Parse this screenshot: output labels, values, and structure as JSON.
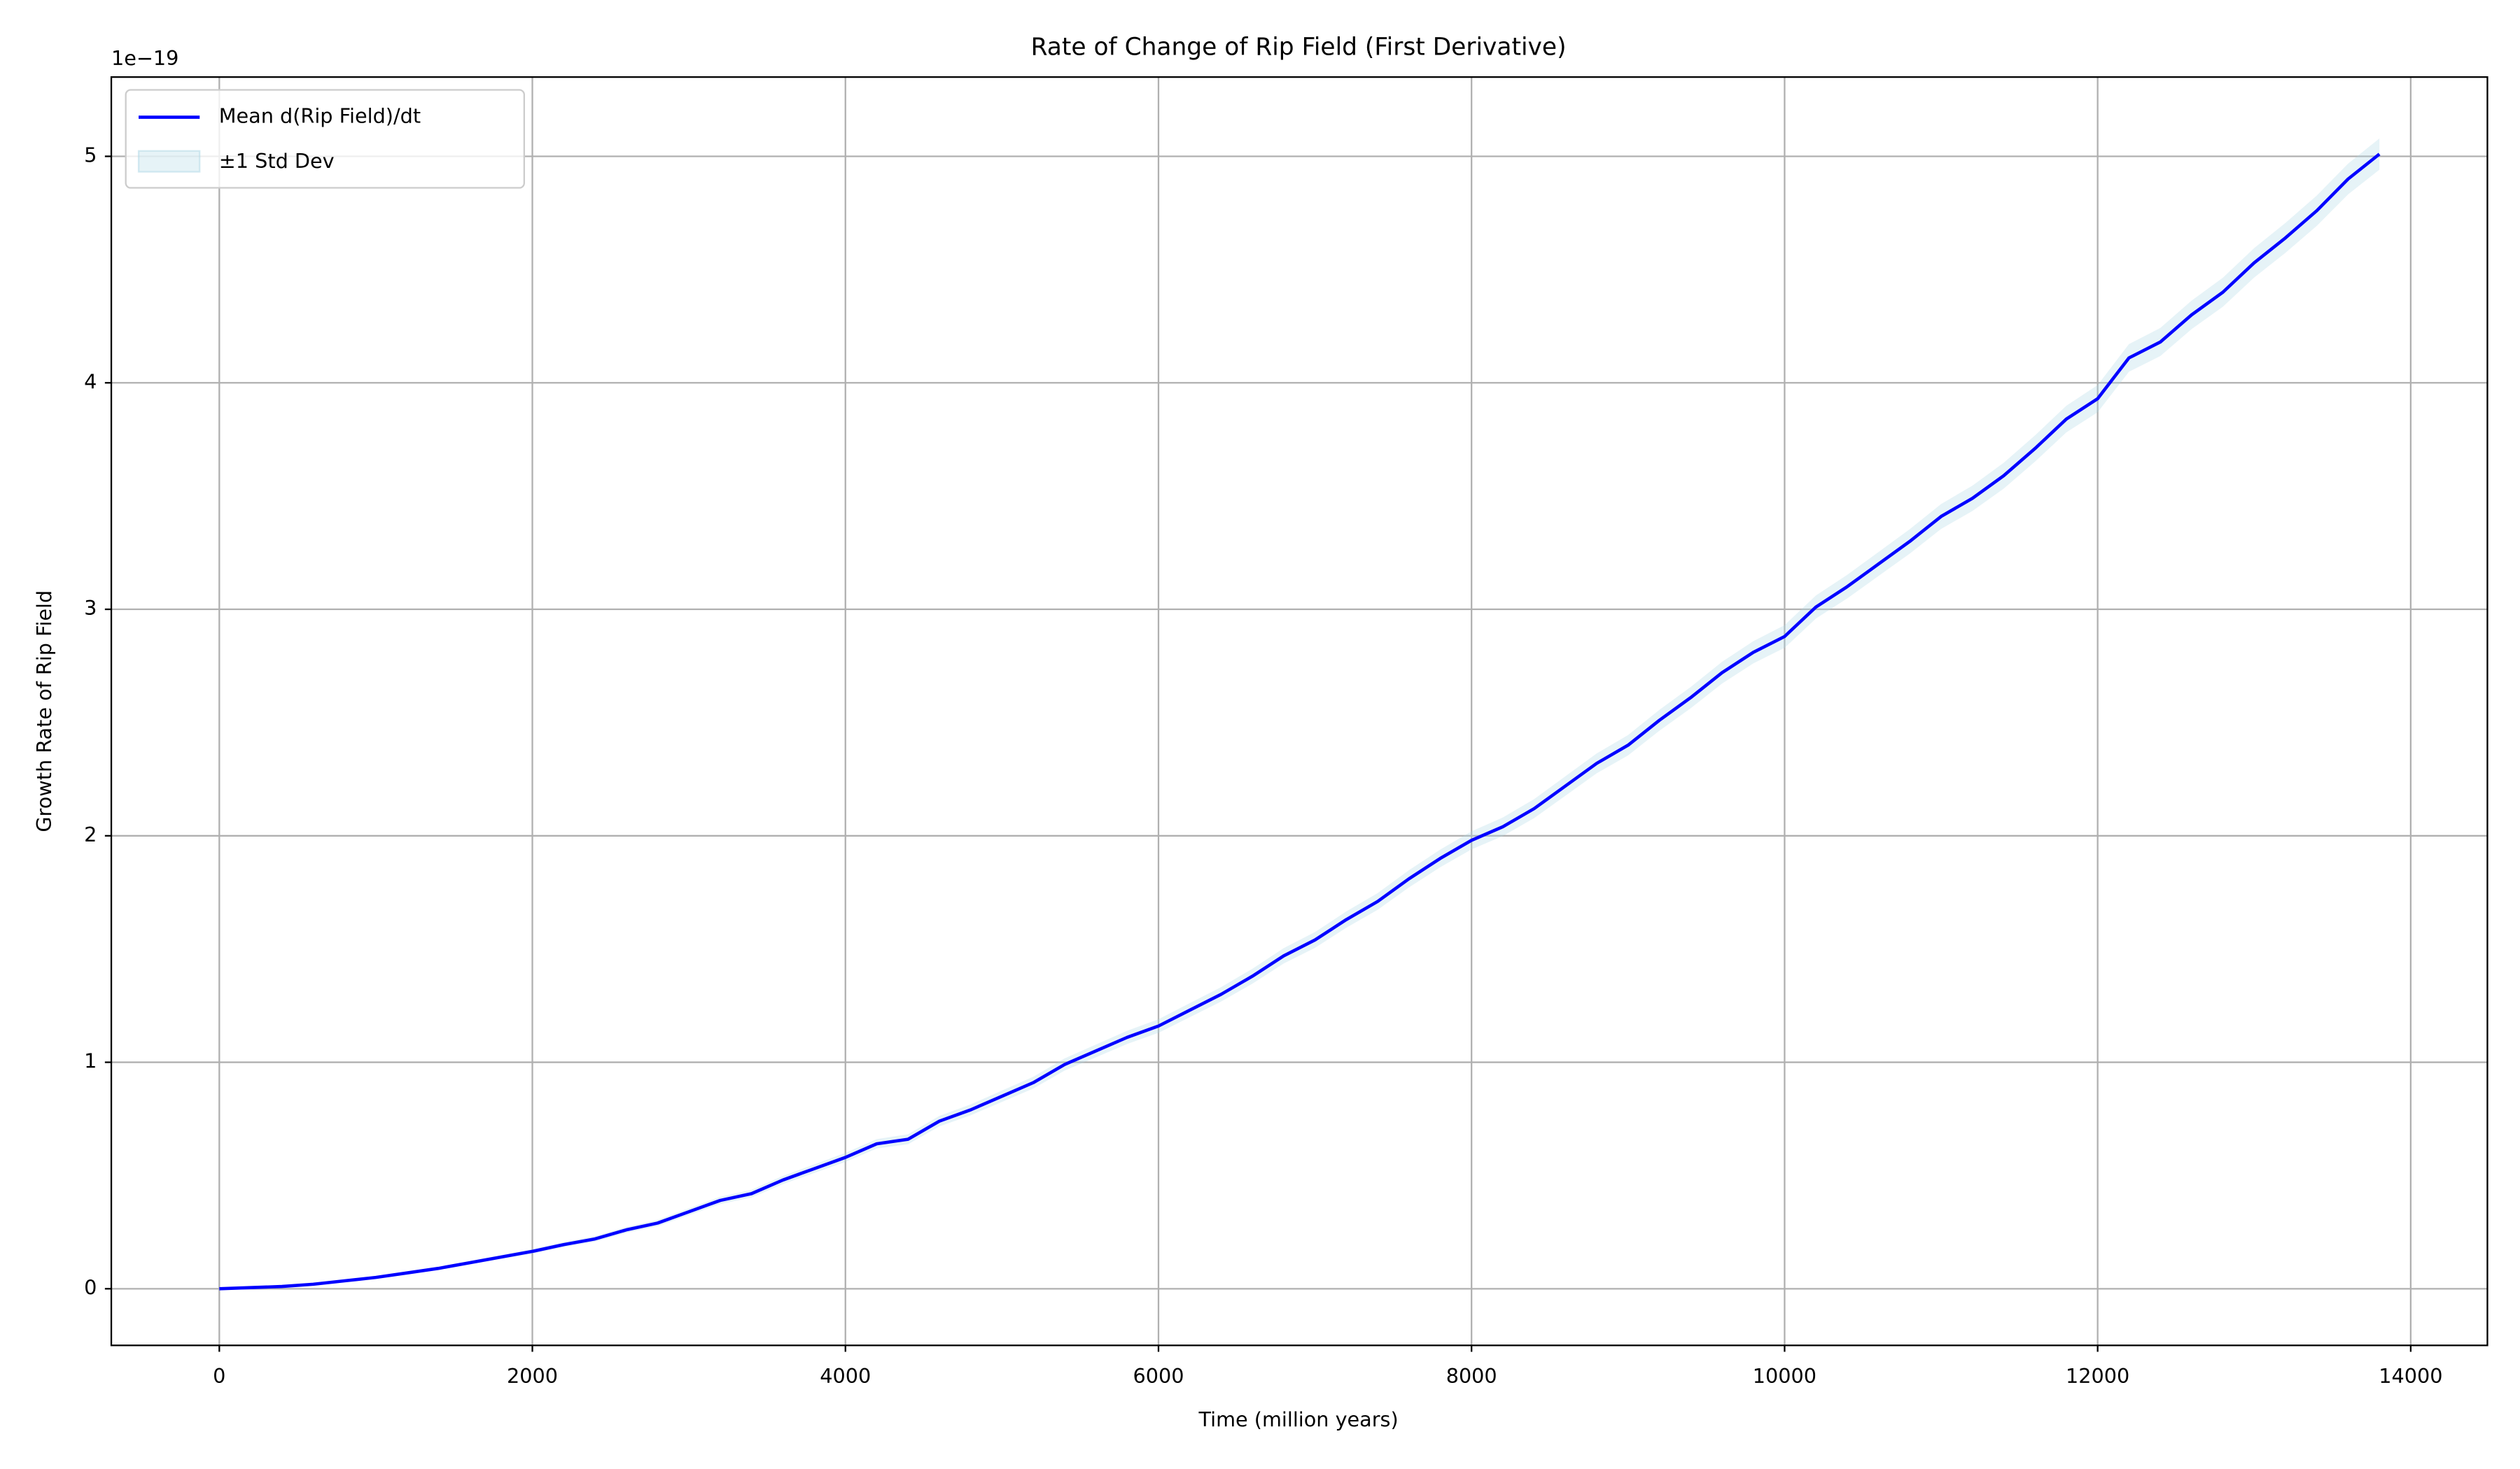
{
  "chart_data": {
    "type": "line",
    "title": "Rate of Change of Rip Field (First Derivative)",
    "x_label": "Time (million years)",
    "y_label": "Growth Rate of Rip Field",
    "y_offset_label": "1e−19",
    "x": [
      0,
      200,
      400,
      600,
      800,
      1000,
      1200,
      1400,
      1600,
      1800,
      2000,
      2200,
      2400,
      2600,
      2800,
      3000,
      3200,
      3400,
      3600,
      3800,
      4000,
      4200,
      4400,
      4600,
      4800,
      5000,
      5200,
      5400,
      5600,
      5800,
      6000,
      6200,
      6400,
      6600,
      6800,
      7000,
      7200,
      7400,
      7600,
      7800,
      8000,
      8200,
      8400,
      8600,
      8800,
      9000,
      9200,
      9400,
      9600,
      9800,
      10000,
      10200,
      10400,
      10600,
      10800,
      11000,
      11200,
      11400,
      11600,
      11800,
      12000,
      12200,
      12400,
      12600,
      12800,
      13000,
      13200,
      13400,
      13600,
      13800
    ],
    "series": [
      {
        "name": "Mean d(Rip Field)/dt",
        "color": "#0000ff",
        "values": [
          0,
          0.005,
          0.01,
          0.02,
          0.035,
          0.05,
          0.07,
          0.09,
          0.115,
          0.14,
          0.165,
          0.195,
          0.22,
          0.26,
          0.29,
          0.34,
          0.39,
          0.42,
          0.48,
          0.53,
          0.58,
          0.64,
          0.66,
          0.74,
          0.79,
          0.85,
          0.91,
          0.99,
          1.05,
          1.11,
          1.16,
          1.23,
          1.3,
          1.38,
          1.47,
          1.54,
          1.63,
          1.71,
          1.81,
          1.9,
          1.98,
          2.04,
          2.12,
          2.22,
          2.32,
          2.4,
          2.51,
          2.61,
          2.72,
          2.81,
          2.88,
          3.01,
          3.1,
          3.2,
          3.3,
          3.41,
          3.49,
          3.59,
          3.71,
          3.84,
          3.93,
          4.11,
          4.18,
          4.3,
          4.4,
          4.53,
          4.64,
          4.76,
          4.9,
          5.01
        ]
      },
      {
        "name": "±1 Std Dev",
        "color": "#add8e6",
        "opacity": 0.3,
        "values": [
          0,
          0.001,
          0.002,
          0.003,
          0.004,
          0.005,
          0.006,
          0.007,
          0.008,
          0.009,
          0.01,
          0.011,
          0.012,
          0.013,
          0.014,
          0.015,
          0.016,
          0.017,
          0.018,
          0.019,
          0.02,
          0.021,
          0.022,
          0.023,
          0.024,
          0.025,
          0.026,
          0.027,
          0.028,
          0.029,
          0.03,
          0.031,
          0.032,
          0.033,
          0.034,
          0.035,
          0.036,
          0.037,
          0.038,
          0.039,
          0.04,
          0.041,
          0.042,
          0.043,
          0.044,
          0.045,
          0.046,
          0.047,
          0.048,
          0.049,
          0.05,
          0.051,
          0.052,
          0.053,
          0.054,
          0.055,
          0.056,
          0.057,
          0.058,
          0.059,
          0.06,
          0.061,
          0.062,
          0.063,
          0.064,
          0.065,
          0.066,
          0.067,
          0.068,
          0.069
        ]
      }
    ],
    "xlim": [
      -690,
      14490
    ],
    "ylim": [
      -0.25,
      5.35
    ],
    "xticks": [
      0,
      2000,
      4000,
      6000,
      8000,
      10000,
      12000,
      14000
    ],
    "yticks": [
      0,
      1,
      2,
      3,
      4,
      5
    ],
    "grid": true,
    "legend": "upper left"
  }
}
